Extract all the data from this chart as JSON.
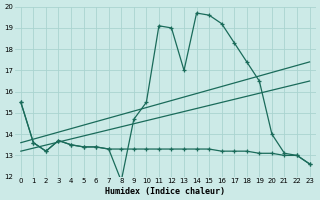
{
  "xlabel": "Humidex (Indice chaleur)",
  "xlim": [
    -0.5,
    23.5
  ],
  "ylim": [
    12,
    20
  ],
  "xticks": [
    0,
    1,
    2,
    3,
    4,
    5,
    6,
    7,
    8,
    9,
    10,
    11,
    12,
    13,
    14,
    15,
    16,
    17,
    18,
    19,
    20,
    21,
    22,
    23
  ],
  "yticks": [
    12,
    13,
    14,
    15,
    16,
    17,
    18,
    19,
    20
  ],
  "bg_color": "#cceae7",
  "grid_color": "#aad4d0",
  "line_color": "#1a6b5a",
  "series1_x": [
    0,
    1,
    2,
    3,
    4,
    5,
    6,
    7,
    8,
    9,
    10,
    11,
    12,
    13,
    14,
    15,
    16,
    17,
    18,
    19,
    20,
    21,
    22,
    23
  ],
  "series1_y": [
    15.5,
    13.6,
    13.2,
    13.7,
    13.5,
    13.4,
    13.4,
    13.3,
    11.8,
    14.7,
    15.5,
    19.1,
    19.0,
    17.0,
    19.7,
    19.6,
    19.2,
    18.3,
    17.4,
    16.5,
    14.0,
    13.1,
    13.0,
    12.6
  ],
  "series2_x": [
    0,
    1,
    2,
    3,
    4,
    5,
    6,
    7,
    8,
    9,
    10,
    11,
    12,
    13,
    14,
    15,
    16,
    17,
    18,
    19,
    20,
    21,
    22,
    23
  ],
  "series2_y": [
    15.5,
    13.6,
    13.2,
    13.7,
    13.5,
    13.4,
    13.4,
    13.3,
    13.3,
    13.3,
    13.3,
    13.3,
    13.3,
    13.3,
    13.3,
    13.3,
    13.2,
    13.2,
    13.2,
    13.1,
    13.1,
    13.0,
    13.0,
    12.6
  ],
  "series3_x": [
    0,
    23
  ],
  "series3_y": [
    13.6,
    17.4
  ],
  "series4_x": [
    0,
    23
  ],
  "series4_y": [
    13.2,
    16.5
  ]
}
